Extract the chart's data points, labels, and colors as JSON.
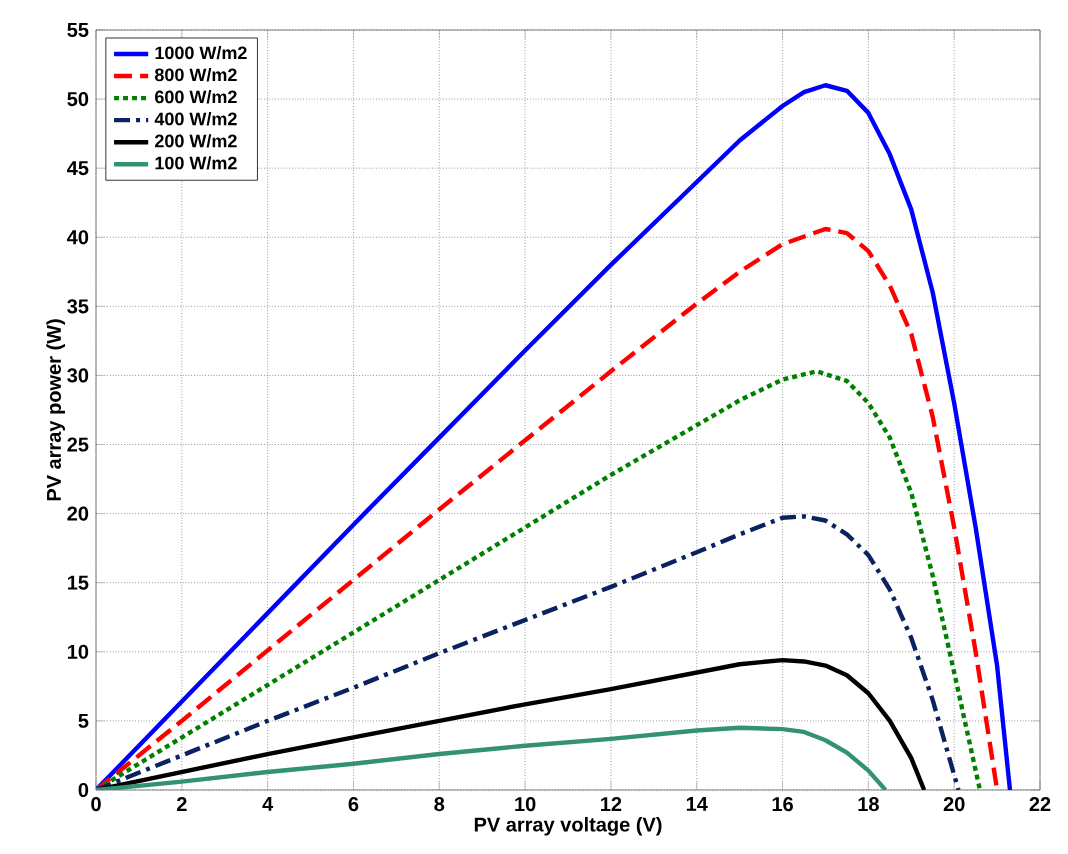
{
  "chart_data": {
    "type": "line",
    "xlabel": "PV array voltage (V)",
    "ylabel": "PV array power (W)",
    "xlim": [
      0,
      22
    ],
    "ylim": [
      0,
      55
    ],
    "xticks": [
      0,
      2,
      4,
      6,
      8,
      10,
      12,
      14,
      16,
      18,
      20,
      22
    ],
    "yticks": [
      0,
      5,
      10,
      15,
      20,
      25,
      30,
      35,
      40,
      45,
      50,
      55
    ],
    "grid": true,
    "legend": "top left",
    "series": [
      {
        "name": "1000 W/m2",
        "color": "#0000ff",
        "line_style": "solid",
        "x": [
          0,
          2,
          4,
          6,
          8,
          10,
          12,
          14,
          15,
          16,
          16.5,
          17,
          17.5,
          18,
          18.5,
          19,
          19.5,
          20,
          20.5,
          21,
          21.3
        ],
        "values": [
          0,
          6.4,
          12.8,
          19.2,
          25.5,
          31.8,
          38,
          44,
          47,
          49.5,
          50.5,
          51,
          50.6,
          49,
          46,
          42,
          36,
          28,
          19,
          9,
          0
        ]
      },
      {
        "name": "800 W/m2",
        "color": "#ff0000",
        "line_style": "dashed",
        "x": [
          0,
          2,
          4,
          6,
          8,
          10,
          12,
          14,
          15,
          16,
          17,
          17.5,
          18,
          18.5,
          19,
          19.5,
          20,
          20.5,
          21
        ],
        "values": [
          0,
          5,
          10.1,
          15.2,
          20.3,
          25.3,
          30.3,
          35.2,
          37.5,
          39.5,
          40.6,
          40.3,
          39,
          36.5,
          33,
          27,
          19,
          10,
          0
        ]
      },
      {
        "name": "600 W/m2",
        "color": "#008000",
        "line_style": "dotted",
        "x": [
          0,
          2,
          4,
          6,
          8,
          10,
          12,
          14,
          15,
          16,
          16.8,
          17.5,
          18,
          18.5,
          19,
          19.5,
          20,
          20.6
        ],
        "values": [
          0,
          3.8,
          7.6,
          11.4,
          15.2,
          19,
          22.8,
          26.4,
          28.2,
          29.7,
          30.3,
          29.6,
          28,
          25.5,
          21.5,
          15.5,
          8.5,
          0
        ]
      },
      {
        "name": "400 W/m2",
        "color": "#0a2260",
        "line_style": "dashdot",
        "x": [
          0,
          2,
          4,
          6,
          8,
          10,
          12,
          14,
          15,
          16,
          16.5,
          17,
          17.5,
          18,
          18.5,
          19,
          19.5,
          20.1
        ],
        "values": [
          0,
          2.5,
          5,
          7.4,
          9.9,
          12.3,
          14.7,
          17.2,
          18.5,
          19.7,
          19.8,
          19.5,
          18.5,
          17,
          14.5,
          11,
          6.5,
          0
        ]
      },
      {
        "name": "200 W/m2",
        "color": "#000000",
        "line_style": "solid",
        "x": [
          0,
          2,
          4,
          6,
          8,
          10,
          12,
          14,
          15,
          16,
          16.5,
          17,
          17.5,
          18,
          18.5,
          19,
          19.3
        ],
        "values": [
          0,
          1.3,
          2.6,
          3.8,
          5,
          6.2,
          7.3,
          8.5,
          9.1,
          9.4,
          9.3,
          9,
          8.3,
          7,
          5,
          2.3,
          0
        ]
      },
      {
        "name": "100 W/m2",
        "color": "#339270",
        "line_style": "solid",
        "x": [
          0,
          2,
          4,
          6,
          8,
          10,
          12,
          14,
          15,
          16,
          16.5,
          17,
          17.5,
          18,
          18.4
        ],
        "values": [
          0,
          0.6,
          1.3,
          1.9,
          2.6,
          3.2,
          3.7,
          4.3,
          4.5,
          4.4,
          4.2,
          3.6,
          2.7,
          1.4,
          0
        ]
      }
    ]
  }
}
